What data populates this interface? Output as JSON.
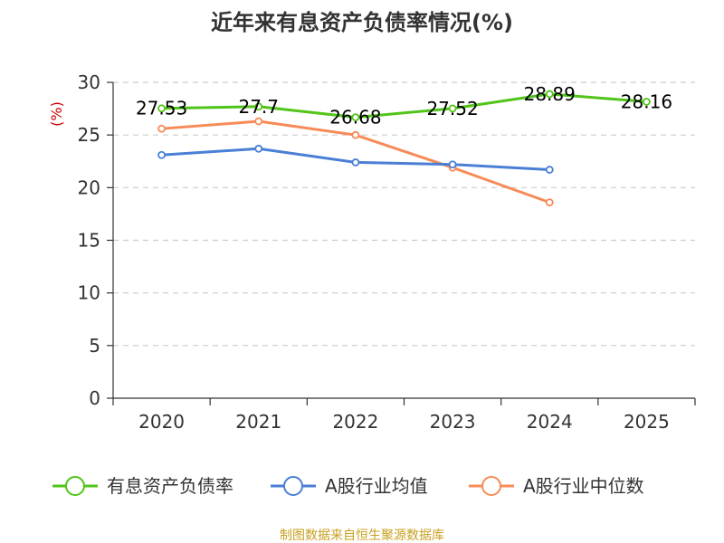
{
  "chart_data": {
    "type": "line",
    "title": "近年来有息资产负债率情况(%)",
    "ylabel": "(%)",
    "xlabel": "",
    "categories": [
      "2020",
      "2021",
      "2022",
      "2023",
      "2024",
      "2025"
    ],
    "yticks": [
      "0",
      "5",
      "10",
      "15",
      "20",
      "25",
      "30"
    ],
    "ylim": [
      0,
      30
    ],
    "grid": true,
    "legend_position": "bottom",
    "series": [
      {
        "name": "有息资产负债率",
        "color": "#52c41a",
        "values": [
          27.53,
          27.7,
          26.68,
          27.52,
          28.89,
          28.16
        ],
        "labels": [
          "27.53",
          "27.7",
          "26.68",
          "27.52",
          "28.89",
          "28.16"
        ]
      },
      {
        "name": "A股行业均值",
        "color": "#4a7fd6",
        "values": [
          23.1,
          23.7,
          22.4,
          22.2,
          21.7,
          null
        ]
      },
      {
        "name": "A股行业中位数",
        "color": "#f78b58",
        "values": [
          25.6,
          26.3,
          25.0,
          21.9,
          18.6,
          null
        ]
      }
    ]
  },
  "source": "制图数据来自恒生聚源数据库"
}
